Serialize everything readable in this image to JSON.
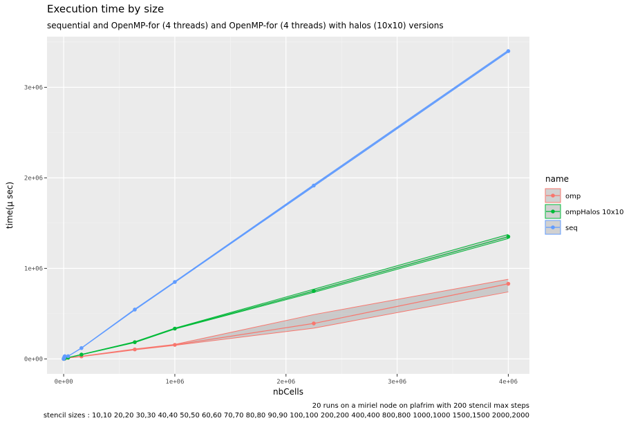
{
  "chart_data": {
    "type": "line",
    "title": "Execution time by size",
    "subtitle": "sequential and OpenMP-for (4 threads) and OpenMP-for (4 threads) with halos (10x10) versions",
    "xlabel": "nbCells",
    "ylabel": "time(µ sec)",
    "xlim": [
      -150000,
      4190000
    ],
    "ylim": [
      -165000,
      3560000
    ],
    "x_ticks": [
      0,
      1000000,
      2000000,
      3000000,
      4000000
    ],
    "x_tick_labels": [
      "0e+00",
      "1e+06",
      "2e+06",
      "3e+06",
      "4e+06"
    ],
    "y_ticks": [
      0,
      1000000,
      2000000,
      3000000
    ],
    "y_tick_labels": [
      "0e+00",
      "1e+06",
      "2e+06",
      "3e+06"
    ],
    "grid": true,
    "legend": {
      "title": "name",
      "position": "right"
    },
    "caption_lines": [
      "20 runs on a miriel node on plafrim with 200 stencil max steps",
      "stencil sizes : 10,10 20,20 30,30 40,40 50,50 60,60 70,70 80,80 90,90 100,100 200,200 400,400 800,800 1000,1000 1500,1500 2000,2000"
    ],
    "series": [
      {
        "name": "omp",
        "color": "#F8766D",
        "x": [
          100,
          400,
          900,
          1600,
          2500,
          3600,
          4900,
          6400,
          8100,
          10000,
          40000,
          160000,
          640000,
          1000000,
          2250000,
          4000000
        ],
        "y": [
          300,
          600,
          900,
          1200,
          1500,
          2000,
          2500,
          3000,
          3500,
          4000,
          12000,
          28000,
          105000,
          155000,
          392000,
          830000
        ],
        "ymin": [
          300,
          600,
          900,
          1200,
          1500,
          2000,
          2500,
          3000,
          3500,
          4000,
          11000,
          26000,
          100000,
          150000,
          340000,
          740000
        ],
        "ymax": [
          300,
          600,
          900,
          1200,
          1500,
          2000,
          2500,
          3000,
          3500,
          4000,
          13000,
          30000,
          110000,
          160000,
          490000,
          880000
        ]
      },
      {
        "name": "ompHalos 10x10",
        "color": "#00BA38",
        "x": [
          100,
          400,
          900,
          1600,
          2500,
          3600,
          4900,
          6400,
          8100,
          10000,
          40000,
          160000,
          640000,
          1000000,
          2250000,
          4000000
        ],
        "y": [
          400,
          800,
          1200,
          1600,
          2000,
          2500,
          3000,
          3500,
          4000,
          4500,
          14000,
          48000,
          185000,
          335000,
          750000,
          1350000
        ],
        "ymin": [
          400,
          800,
          1200,
          1600,
          2000,
          2500,
          3000,
          3500,
          4000,
          4500,
          13000,
          46000,
          180000,
          330000,
          735000,
          1330000
        ],
        "ymax": [
          400,
          800,
          1200,
          1600,
          2000,
          2500,
          3000,
          3500,
          4000,
          4500,
          15000,
          50000,
          190000,
          340000,
          770000,
          1375000
        ]
      },
      {
        "name": "seq",
        "color": "#619CFF",
        "x": [
          100,
          400,
          900,
          1600,
          2500,
          3600,
          4900,
          6400,
          8100,
          10000,
          40000,
          160000,
          640000,
          1000000,
          2250000,
          4000000
        ],
        "y": [
          300,
          1200,
          2700,
          4800,
          7500,
          11000,
          15000,
          20000,
          25000,
          30000,
          30000,
          120000,
          545000,
          850000,
          1915000,
          3400000
        ],
        "ymin": [
          300,
          1200,
          2700,
          4800,
          7500,
          11000,
          15000,
          20000,
          25000,
          30000,
          29000,
          118000,
          540000,
          845000,
          1905000,
          3390000
        ],
        "ymax": [
          300,
          1200,
          2700,
          4800,
          7500,
          11000,
          15000,
          20000,
          25000,
          30000,
          31000,
          122000,
          550000,
          855000,
          1925000,
          3410000
        ]
      }
    ]
  }
}
